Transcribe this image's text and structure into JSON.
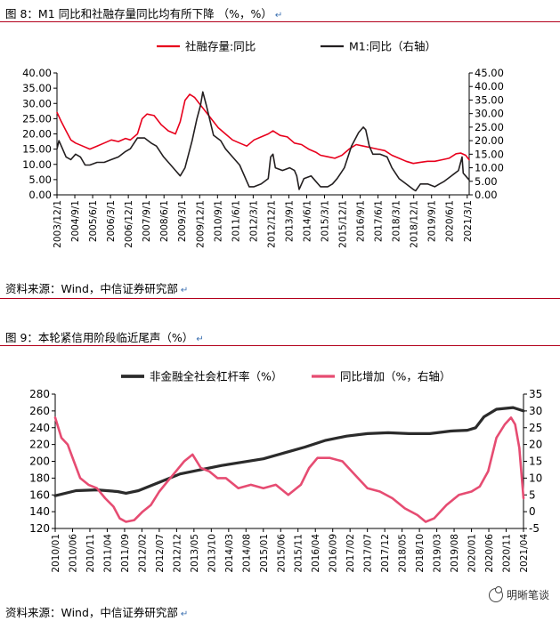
{
  "captions": {
    "fig8_title": "图 8：M1 同比和社融存量同比均有所下降 （%，%）",
    "fig8_source": "资料来源：Wind，中信证券研究部",
    "fig9_title": "图 9：本轮紧信用阶段临近尾声（%）",
    "fig9_source": "资料来源：Wind，中信证券研究部",
    "watermark": "明晰笔谈"
  },
  "colors": {
    "red": "#e8001c",
    "black": "#231f20",
    "pink": "#e64c72",
    "dark": "#2b2b2b",
    "rule": "#b3001b"
  },
  "chart_data": [
    {
      "type": "line",
      "legend_placement": "top",
      "left_axis": {
        "min": 0,
        "max": 40,
        "ticks": [
          "0.00",
          "5.00",
          "10.00",
          "15.00",
          "20.00",
          "25.00",
          "30.00",
          "35.00",
          "40.00"
        ]
      },
      "right_axis": {
        "min": 0,
        "max": 45,
        "ticks": [
          "0.00",
          "5.00",
          "10.00",
          "15.00",
          "20.00",
          "25.00",
          "30.00",
          "35.00",
          "40.00",
          "45.00"
        ]
      },
      "x_range": [
        2003.917,
        2021.25
      ],
      "x_tick_labels": [
        "2003/12/1",
        "2004/9/1",
        "2005/6/1",
        "2006/3/1",
        "2006/12/1",
        "2007/9/1",
        "2008/6/1",
        "2009/3/1",
        "2009/12/1",
        "2010/9/1",
        "2011/6/1",
        "2012/3/1",
        "2012/12/1",
        "2013/9/1",
        "2014/6/1",
        "2015/3/1",
        "2015/12/1",
        "2016/9/1",
        "2017/6/1",
        "2018/3/1",
        "2018/12/1",
        "2019/9/1",
        "2020/6/1",
        "2021/3/1"
      ],
      "x_tick_values": [
        2003.917,
        2004.667,
        2005.417,
        2006.167,
        2006.917,
        2007.667,
        2008.417,
        2009.167,
        2009.917,
        2010.667,
        2011.417,
        2012.167,
        2012.917,
        2013.667,
        2014.417,
        2015.167,
        2015.917,
        2016.667,
        2017.417,
        2018.167,
        2018.917,
        2019.667,
        2020.417,
        2021.167
      ],
      "series": [
        {
          "name": "社融存量:同比",
          "axis": "left",
          "x": [
            2003.92,
            2004.1,
            2004.3,
            2004.5,
            2004.7,
            2005.0,
            2005.3,
            2005.6,
            2005.9,
            2006.2,
            2006.5,
            2006.8,
            2007.0,
            2007.3,
            2007.5,
            2007.7,
            2008.0,
            2008.3,
            2008.6,
            2008.9,
            2009.1,
            2009.3,
            2009.5,
            2009.7,
            2009.9,
            2010.1,
            2010.4,
            2010.7,
            2011.0,
            2011.3,
            2011.6,
            2011.9,
            2012.2,
            2012.5,
            2012.8,
            2013.0,
            2013.3,
            2013.6,
            2013.9,
            2014.2,
            2014.5,
            2014.8,
            2015.0,
            2015.3,
            2015.6,
            2015.9,
            2016.2,
            2016.5,
            2016.8,
            2017.1,
            2017.4,
            2017.7,
            2018.0,
            2018.3,
            2018.6,
            2018.9,
            2019.2,
            2019.5,
            2019.8,
            2020.1,
            2020.4,
            2020.7,
            2020.9,
            2021.1,
            2021.25
          ],
          "y": [
            27,
            24,
            21,
            18,
            17,
            16,
            15,
            16,
            17,
            18,
            17.5,
            18.5,
            18,
            20,
            25,
            26.5,
            26,
            23,
            21,
            20,
            24,
            31,
            33,
            32,
            30,
            28,
            25,
            22,
            20,
            18,
            17,
            16,
            18,
            19,
            20,
            21,
            19.5,
            19,
            17,
            16.5,
            15,
            14,
            13,
            12.5,
            12,
            13,
            15,
            16.5,
            16,
            15.5,
            15,
            14.5,
            13,
            12,
            11,
            10.3,
            10.7,
            11,
            11,
            11.5,
            12,
            13.5,
            13.7,
            13,
            11.5
          ]
        },
        {
          "name": "M1:同比（右轴）",
          "axis": "right",
          "x": [
            2003.92,
            2004.0,
            2004.1,
            2004.3,
            2004.5,
            2004.7,
            2004.9,
            2005.1,
            2005.3,
            2005.6,
            2005.9,
            2006.2,
            2006.5,
            2006.8,
            2007.0,
            2007.3,
            2007.6,
            2007.9,
            2008.1,
            2008.4,
            2008.7,
            2008.9,
            2009.1,
            2009.3,
            2009.6,
            2009.8,
            2009.95,
            2010.05,
            2010.2,
            2010.5,
            2010.8,
            2011.0,
            2011.3,
            2011.6,
            2011.9,
            2012.0,
            2012.2,
            2012.5,
            2012.8,
            2012.9,
            2013.0,
            2013.1,
            2013.4,
            2013.7,
            2013.9,
            2014.0,
            2014.1,
            2014.3,
            2014.6,
            2014.8,
            2015.0,
            2015.3,
            2015.5,
            2015.7,
            2016.0,
            2016.3,
            2016.6,
            2016.8,
            2016.9,
            2017.05,
            2017.2,
            2017.5,
            2017.8,
            2018.0,
            2018.3,
            2018.6,
            2018.9,
            2019.0,
            2019.2,
            2019.5,
            2019.8,
            2020.0,
            2020.2,
            2020.5,
            2020.8,
            2020.95,
            2021.0,
            2021.1,
            2021.25
          ],
          "y": [
            17,
            20,
            18,
            14,
            13,
            15,
            14,
            11,
            11,
            12,
            12,
            13,
            14,
            16,
            17,
            21,
            21,
            19,
            18,
            14,
            11,
            9,
            7,
            10,
            20,
            28,
            33,
            38,
            33,
            22,
            20,
            17,
            14,
            11,
            5,
            3,
            3,
            4,
            6,
            14,
            15,
            10,
            9,
            10,
            9,
            7,
            2,
            6,
            7,
            5,
            3,
            3,
            4,
            6,
            10,
            18,
            23,
            25,
            24,
            18,
            15,
            15,
            14,
            10,
            6,
            4,
            2,
            1.5,
            4,
            4,
            3,
            4,
            5,
            7,
            9,
            14,
            8,
            7,
            5.5
          ]
        }
      ]
    },
    {
      "type": "line",
      "legend_placement": "top",
      "left_axis": {
        "min": 120,
        "max": 280,
        "ticks": [
          "120",
          "140",
          "160",
          "180",
          "200",
          "220",
          "240",
          "260",
          "280"
        ]
      },
      "right_axis": {
        "min": -5,
        "max": 35,
        "ticks": [
          "-5",
          "0",
          "5",
          "10",
          "15",
          "20",
          "25",
          "30",
          "35"
        ]
      },
      "x_range": [
        2010.0,
        2021.25
      ],
      "x_tick_labels": [
        "2010/01",
        "2010/06",
        "2010/11",
        "2011/04",
        "2011/09",
        "2012/02",
        "2012/07",
        "2012/12",
        "2013/05",
        "2013/10",
        "2014/03",
        "2014/08",
        "2015/01",
        "2015/06",
        "2015/11",
        "2016/04",
        "2016/09",
        "2017/02",
        "2017/07",
        "2017/12",
        "2018/05",
        "2018/10",
        "2019/03",
        "2019/08",
        "2020/01",
        "2020/06",
        "2020/11",
        "2021/04"
      ],
      "x_tick_values": [
        2010.0,
        2010.417,
        2010.833,
        2011.25,
        2011.667,
        2012.083,
        2012.5,
        2012.917,
        2013.333,
        2013.75,
        2014.167,
        2014.583,
        2015.0,
        2015.417,
        2015.833,
        2016.25,
        2016.667,
        2017.083,
        2017.5,
        2017.917,
        2018.333,
        2018.75,
        2019.167,
        2019.583,
        2020.0,
        2020.417,
        2020.833,
        2021.25
      ],
      "series": [
        {
          "name": "非金融全社会杠杆率（%）",
          "axis": "left",
          "x": [
            2010.0,
            2010.5,
            2011.0,
            2011.5,
            2011.7,
            2012.0,
            2012.5,
            2013.0,
            2013.5,
            2014.0,
            2014.5,
            2015.0,
            2015.5,
            2016.0,
            2016.5,
            2017.0,
            2017.5,
            2018.0,
            2018.5,
            2019.0,
            2019.5,
            2019.9,
            2020.1,
            2020.3,
            2020.6,
            2021.0,
            2021.25
          ],
          "y": [
            159,
            165,
            166,
            164,
            162,
            165,
            175,
            185,
            190,
            195,
            199,
            203,
            210,
            217,
            225,
            230,
            233,
            234,
            233,
            233,
            236,
            237,
            240,
            253,
            262,
            264,
            260
          ]
        },
        {
          "name": "同比增加（%，右轴）",
          "axis": "right",
          "x": [
            2010.0,
            2010.15,
            2010.3,
            2010.45,
            2010.6,
            2010.8,
            2011.0,
            2011.2,
            2011.4,
            2011.55,
            2011.7,
            2011.9,
            2012.1,
            2012.3,
            2012.5,
            2012.7,
            2012.9,
            2013.1,
            2013.3,
            2013.5,
            2013.7,
            2013.9,
            2014.1,
            2014.4,
            2014.7,
            2015.0,
            2015.3,
            2015.6,
            2015.9,
            2016.1,
            2016.3,
            2016.6,
            2016.9,
            2017.2,
            2017.5,
            2017.8,
            2018.1,
            2018.4,
            2018.7,
            2018.9,
            2019.1,
            2019.4,
            2019.7,
            2020.0,
            2020.2,
            2020.4,
            2020.6,
            2020.8,
            2020.95,
            2021.05,
            2021.15,
            2021.25
          ],
          "y": [
            28,
            22,
            20,
            15,
            10,
            8,
            7,
            4,
            1.5,
            -2,
            -3,
            -2.5,
            0,
            2,
            6,
            9,
            12,
            15,
            17,
            13,
            12,
            10,
            10,
            7,
            8,
            7,
            8,
            5,
            8,
            13,
            16,
            16,
            15,
            11,
            7,
            6,
            4,
            1,
            -1,
            -3,
            -2,
            2,
            5,
            6,
            7.5,
            12,
            22,
            26,
            28,
            26,
            19,
            4
          ]
        }
      ]
    }
  ]
}
